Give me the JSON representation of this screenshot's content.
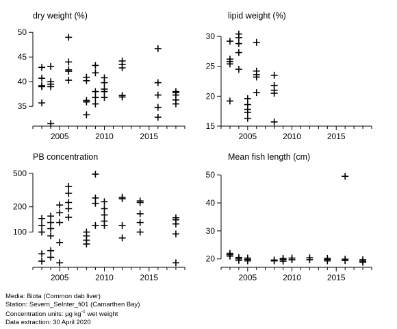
{
  "chart_data": [
    {
      "type": "scatter",
      "title": "dry weight (%)",
      "xlim": [
        2002,
        2019
      ],
      "ylim": [
        31,
        51
      ],
      "xticks": [
        2005,
        2010,
        2015
      ],
      "yticks": [
        35,
        40,
        45,
        50
      ],
      "points": [
        [
          2003,
          35.7
        ],
        [
          2003,
          39.0
        ],
        [
          2003,
          39.2
        ],
        [
          2003,
          40.7
        ],
        [
          2003,
          42.9
        ],
        [
          2004,
          31.5
        ],
        [
          2004,
          39.0
        ],
        [
          2004,
          39.5
        ],
        [
          2004,
          40.0
        ],
        [
          2004,
          43.1
        ],
        [
          2006,
          40.3
        ],
        [
          2006,
          42.1
        ],
        [
          2006,
          42.4
        ],
        [
          2006,
          44.0
        ],
        [
          2006,
          49.0
        ],
        [
          2008,
          33.3
        ],
        [
          2008,
          35.9
        ],
        [
          2008,
          36.2
        ],
        [
          2008,
          40.2
        ],
        [
          2008,
          40.9
        ],
        [
          2009,
          35.5
        ],
        [
          2009,
          36.8
        ],
        [
          2009,
          38.0
        ],
        [
          2009,
          41.8
        ],
        [
          2009,
          43.3
        ],
        [
          2010,
          36.8
        ],
        [
          2010,
          38.0
        ],
        [
          2010,
          38.5
        ],
        [
          2010,
          39.8
        ],
        [
          2010,
          40.8
        ],
        [
          2012,
          36.9
        ],
        [
          2012,
          37.2
        ],
        [
          2012,
          42.8
        ],
        [
          2012,
          43.5
        ],
        [
          2012,
          44.2
        ],
        [
          2016,
          32.8
        ],
        [
          2016,
          34.8
        ],
        [
          2016,
          37.3
        ],
        [
          2016,
          39.8
        ],
        [
          2016,
          46.7
        ],
        [
          2018,
          35.5
        ],
        [
          2018,
          36.3
        ],
        [
          2018,
          37.3
        ],
        [
          2018,
          37.8
        ],
        [
          2018,
          38.0
        ]
      ]
    },
    {
      "type": "scatter",
      "title": "lipid weight (%)",
      "xlim": [
        2002,
        2019
      ],
      "ylim": [
        15,
        31.5
      ],
      "xticks": [
        2005,
        2010,
        2015
      ],
      "yticks": [
        15,
        20,
        25,
        30
      ],
      "points": [
        [
          2003,
          19.2
        ],
        [
          2003,
          25.4
        ],
        [
          2003,
          25.8
        ],
        [
          2003,
          26.2
        ],
        [
          2003,
          29.2
        ],
        [
          2004,
          24.5
        ],
        [
          2004,
          27.3
        ],
        [
          2004,
          28.8
        ],
        [
          2004,
          29.8
        ],
        [
          2004,
          30.4
        ],
        [
          2005,
          16.3
        ],
        [
          2005,
          17.3
        ],
        [
          2005,
          17.8
        ],
        [
          2005,
          18.6
        ],
        [
          2005,
          19.6
        ],
        [
          2006,
          20.6
        ],
        [
          2006,
          23.2
        ],
        [
          2006,
          23.6
        ],
        [
          2006,
          24.2
        ],
        [
          2006,
          29.0
        ],
        [
          2008,
          15.7
        ],
        [
          2008,
          20.5
        ],
        [
          2008,
          21.0
        ],
        [
          2008,
          21.8
        ],
        [
          2008,
          23.5
        ]
      ]
    },
    {
      "type": "scatter",
      "title": "PB concentration",
      "xlim": [
        2002,
        2019
      ],
      "ylim": [
        38,
        560
      ],
      "yscale": "log",
      "xticks": [
        2005,
        2010,
        2015
      ],
      "yticks": [
        100,
        200,
        500
      ],
      "points": [
        [
          2003,
          45
        ],
        [
          2003,
          55
        ],
        [
          2003,
          100
        ],
        [
          2003,
          120
        ],
        [
          2003,
          145
        ],
        [
          2004,
          50
        ],
        [
          2004,
          60
        ],
        [
          2004,
          90
        ],
        [
          2004,
          110
        ],
        [
          2004,
          130
        ],
        [
          2004,
          155
        ],
        [
          2005,
          43
        ],
        [
          2005,
          75
        ],
        [
          2005,
          130
        ],
        [
          2005,
          170
        ],
        [
          2005,
          210
        ],
        [
          2006,
          150
        ],
        [
          2006,
          190
        ],
        [
          2006,
          225
        ],
        [
          2006,
          290
        ],
        [
          2006,
          350
        ],
        [
          2008,
          72
        ],
        [
          2008,
          80
        ],
        [
          2008,
          90
        ],
        [
          2008,
          100
        ],
        [
          2009,
          120
        ],
        [
          2009,
          220
        ],
        [
          2009,
          255
        ],
        [
          2009,
          490
        ],
        [
          2010,
          120
        ],
        [
          2010,
          135
        ],
        [
          2010,
          160
        ],
        [
          2010,
          190
        ],
        [
          2010,
          230
        ],
        [
          2012,
          85
        ],
        [
          2012,
          120
        ],
        [
          2012,
          250
        ],
        [
          2012,
          260
        ],
        [
          2014,
          100
        ],
        [
          2014,
          130
        ],
        [
          2014,
          165
        ],
        [
          2014,
          225
        ],
        [
          2014,
          235
        ],
        [
          2018,
          43
        ],
        [
          2018,
          95
        ],
        [
          2018,
          125
        ],
        [
          2018,
          140
        ],
        [
          2018,
          148
        ]
      ]
    },
    {
      "type": "scatter",
      "title": "Mean fish length (cm)",
      "xlim": [
        2002,
        2019
      ],
      "ylim": [
        17,
        52
      ],
      "xticks": [
        2005,
        2010,
        2015
      ],
      "yticks": [
        20,
        30,
        40,
        50
      ],
      "points": [
        [
          2003,
          21.0
        ],
        [
          2003,
          21.5
        ],
        [
          2003,
          22.0
        ],
        [
          2004,
          19.5
        ],
        [
          2004,
          20.0
        ],
        [
          2004,
          20.5
        ],
        [
          2005,
          19.3
        ],
        [
          2005,
          19.8
        ],
        [
          2005,
          20.3
        ],
        [
          2008,
          19.3
        ],
        [
          2008,
          19.6
        ],
        [
          2009,
          19.2
        ],
        [
          2009,
          19.8
        ],
        [
          2009,
          20.2
        ],
        [
          2010,
          19.7
        ],
        [
          2010,
          20.3
        ],
        [
          2012,
          19.7
        ],
        [
          2012,
          20.4
        ],
        [
          2014,
          19.3
        ],
        [
          2014,
          19.8
        ],
        [
          2014,
          20.2
        ],
        [
          2016,
          19.4
        ],
        [
          2016,
          19.9
        ],
        [
          2016,
          49.5
        ],
        [
          2018,
          18.8
        ],
        [
          2018,
          19.2
        ],
        [
          2018,
          19.7
        ]
      ]
    }
  ],
  "footer": {
    "media": "Media: Biota (Common dab liver)",
    "station": "Station: Severn_SeInter_fi01 (Camarthen Bay)",
    "units_prefix": "Concentration units:  µg kg",
    "units_sup": "-1",
    "units_suffix": " wet weight",
    "extraction": "Data extraction: 30 April 2020"
  }
}
